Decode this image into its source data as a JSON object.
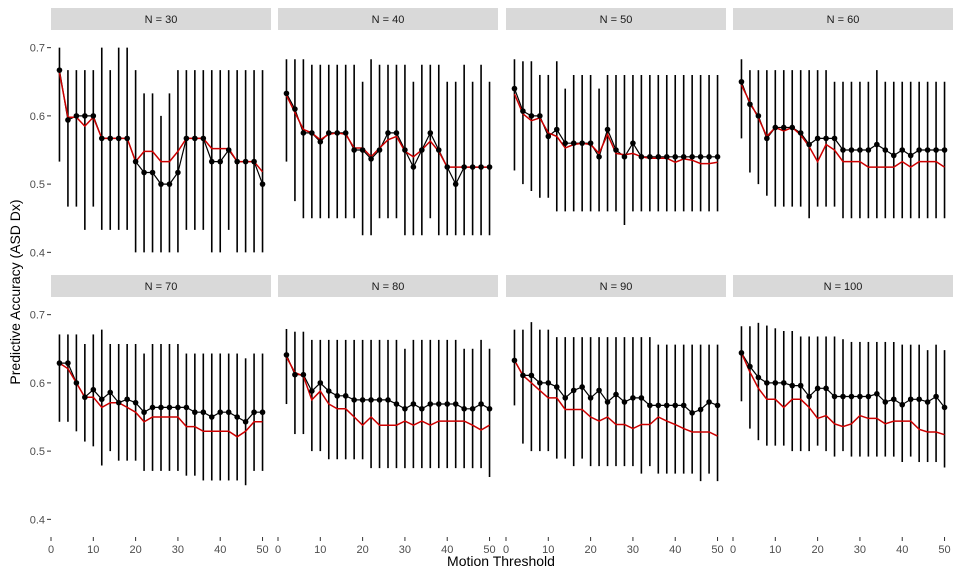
{
  "chart_data": {
    "type": "line",
    "xlabel": "Motion Threshold",
    "ylabel": "Predictive Accuracy (ASD Dx)",
    "xlim": [
      0,
      52
    ],
    "ylim": [
      0.38,
      0.72
    ],
    "x_ticks": [
      0,
      10,
      20,
      30,
      40,
      50
    ],
    "x_tick_labels": [
      "0",
      "10",
      "20",
      "30",
      "40",
      "50"
    ],
    "y_ticks": [
      0.4,
      0.5,
      0.6,
      0.7
    ],
    "y_tick_labels": [
      "0.4",
      "0.5",
      "0.6",
      "0.7"
    ],
    "x": [
      2,
      4,
      6,
      8,
      10,
      12,
      14,
      16,
      18,
      20,
      22,
      24,
      26,
      28,
      30,
      32,
      34,
      36,
      38,
      40,
      42,
      44,
      46,
      48,
      50
    ],
    "colors": {
      "points": "#000000",
      "errorbars": "#000000",
      "red_line": "#cc0000",
      "strip": "#d9d9d9"
    },
    "panels": [
      {
        "label": "N = 30",
        "mean": [
          0.667,
          0.594,
          0.6,
          0.6,
          0.6,
          0.567,
          0.567,
          0.567,
          0.567,
          0.533,
          0.517,
          0.517,
          0.5,
          0.5,
          0.517,
          0.567,
          0.567,
          0.567,
          0.533,
          0.533,
          0.55,
          0.533,
          0.533,
          0.533,
          0.5
        ],
        "lower": [
          0.533,
          0.467,
          0.467,
          0.433,
          0.467,
          0.433,
          0.433,
          0.433,
          0.433,
          0.4,
          0.4,
          0.4,
          0.4,
          0.4,
          0.4,
          0.433,
          0.433,
          0.433,
          0.4,
          0.4,
          0.433,
          0.4,
          0.4,
          0.4,
          0.4
        ],
        "upper": [
          0.7,
          0.667,
          0.667,
          0.667,
          0.667,
          0.7,
          0.667,
          0.7,
          0.7,
          0.667,
          0.633,
          0.633,
          0.6,
          0.633,
          0.667,
          0.667,
          0.667,
          0.667,
          0.667,
          0.667,
          0.667,
          0.667,
          0.667,
          0.667,
          0.667
        ],
        "red": [
          0.663,
          0.598,
          0.598,
          0.585,
          0.598,
          0.567,
          0.567,
          0.567,
          0.567,
          0.533,
          0.548,
          0.548,
          0.533,
          0.533,
          0.548,
          0.567,
          0.567,
          0.567,
          0.552,
          0.552,
          0.552,
          0.533,
          0.533,
          0.533,
          0.518
        ]
      },
      {
        "label": "N = 40",
        "mean": [
          0.633,
          0.61,
          0.575,
          0.575,
          0.562,
          0.575,
          0.575,
          0.575,
          0.55,
          0.55,
          0.537,
          0.55,
          0.575,
          0.575,
          0.55,
          0.525,
          0.55,
          0.575,
          0.55,
          0.525,
          0.5,
          0.525,
          0.525,
          0.525,
          0.525
        ],
        "lower": [
          0.533,
          0.475,
          0.45,
          0.45,
          0.45,
          0.45,
          0.45,
          0.45,
          0.45,
          0.425,
          0.425,
          0.45,
          0.45,
          0.45,
          0.425,
          0.425,
          0.425,
          0.45,
          0.425,
          0.425,
          0.425,
          0.425,
          0.425,
          0.425,
          0.425
        ],
        "upper": [
          0.683,
          0.683,
          0.683,
          0.675,
          0.675,
          0.675,
          0.675,
          0.675,
          0.675,
          0.65,
          0.683,
          0.675,
          0.675,
          0.675,
          0.675,
          0.65,
          0.675,
          0.675,
          0.675,
          0.65,
          0.65,
          0.675,
          0.65,
          0.675,
          0.65
        ],
        "red": [
          0.63,
          0.605,
          0.58,
          0.575,
          0.565,
          0.573,
          0.575,
          0.573,
          0.553,
          0.553,
          0.54,
          0.553,
          0.565,
          0.57,
          0.548,
          0.54,
          0.55,
          0.563,
          0.548,
          0.525,
          0.525,
          0.525,
          0.525,
          0.525,
          0.525
        ]
      },
      {
        "label": "N = 50",
        "mean": [
          0.64,
          0.607,
          0.6,
          0.6,
          0.57,
          0.58,
          0.56,
          0.56,
          0.56,
          0.56,
          0.54,
          0.58,
          0.55,
          0.54,
          0.56,
          0.54,
          0.54,
          0.54,
          0.54,
          0.54,
          0.54,
          0.54,
          0.54,
          0.54,
          0.54
        ],
        "lower": [
          0.52,
          0.5,
          0.49,
          0.48,
          0.48,
          0.46,
          0.46,
          0.46,
          0.46,
          0.46,
          0.46,
          0.46,
          0.46,
          0.44,
          0.46,
          0.46,
          0.46,
          0.46,
          0.46,
          0.46,
          0.46,
          0.46,
          0.46,
          0.46,
          0.46
        ],
        "upper": [
          0.683,
          0.68,
          0.68,
          0.66,
          0.66,
          0.68,
          0.64,
          0.66,
          0.66,
          0.66,
          0.64,
          0.66,
          0.66,
          0.66,
          0.66,
          0.66,
          0.66,
          0.66,
          0.66,
          0.66,
          0.66,
          0.66,
          0.66,
          0.66,
          0.66
        ],
        "red": [
          0.632,
          0.603,
          0.593,
          0.597,
          0.575,
          0.57,
          0.553,
          0.558,
          0.56,
          0.558,
          0.545,
          0.573,
          0.545,
          0.543,
          0.545,
          0.54,
          0.538,
          0.538,
          0.538,
          0.532,
          0.537,
          0.535,
          0.53,
          0.53,
          0.532
        ]
      },
      {
        "label": "N = 60",
        "mean": [
          0.65,
          0.617,
          0.6,
          0.567,
          0.583,
          0.583,
          0.583,
          0.575,
          0.558,
          0.567,
          0.567,
          0.567,
          0.55,
          0.55,
          0.55,
          0.55,
          0.558,
          0.55,
          0.542,
          0.55,
          0.542,
          0.55,
          0.55,
          0.55,
          0.55
        ],
        "lower": [
          0.567,
          0.517,
          0.5,
          0.483,
          0.467,
          0.467,
          0.467,
          0.467,
          0.45,
          0.467,
          0.467,
          0.467,
          0.45,
          0.45,
          0.45,
          0.45,
          0.45,
          0.45,
          0.45,
          0.45,
          0.45,
          0.45,
          0.45,
          0.45,
          0.45
        ],
        "upper": [
          0.683,
          0.667,
          0.667,
          0.667,
          0.667,
          0.667,
          0.667,
          0.667,
          0.667,
          0.667,
          0.667,
          0.65,
          0.65,
          0.65,
          0.65,
          0.65,
          0.667,
          0.65,
          0.65,
          0.65,
          0.65,
          0.65,
          0.65,
          0.65,
          0.65
        ],
        "red": [
          0.645,
          0.62,
          0.597,
          0.57,
          0.583,
          0.578,
          0.583,
          0.572,
          0.555,
          0.533,
          0.558,
          0.55,
          0.533,
          0.533,
          0.533,
          0.525,
          0.525,
          0.525,
          0.525,
          0.533,
          0.525,
          0.533,
          0.533,
          0.533,
          0.525
        ]
      },
      {
        "label": "N = 70",
        "mean": [
          0.629,
          0.629,
          0.6,
          0.579,
          0.59,
          0.576,
          0.586,
          0.571,
          0.576,
          0.571,
          0.557,
          0.564,
          0.564,
          0.564,
          0.564,
          0.564,
          0.557,
          0.557,
          0.55,
          0.557,
          0.557,
          0.55,
          0.543,
          0.557,
          0.557
        ],
        "lower": [
          0.543,
          0.543,
          0.529,
          0.514,
          0.507,
          0.479,
          0.5,
          0.486,
          0.486,
          0.486,
          0.471,
          0.471,
          0.471,
          0.471,
          0.471,
          0.464,
          0.464,
          0.457,
          0.457,
          0.457,
          0.457,
          0.457,
          0.45,
          0.471,
          0.471
        ],
        "upper": [
          0.671,
          0.671,
          0.671,
          0.657,
          0.671,
          0.678,
          0.657,
          0.657,
          0.657,
          0.657,
          0.643,
          0.657,
          0.657,
          0.657,
          0.657,
          0.643,
          0.643,
          0.643,
          0.643,
          0.643,
          0.643,
          0.643,
          0.636,
          0.643,
          0.643
        ],
        "red": [
          0.629,
          0.621,
          0.6,
          0.579,
          0.579,
          0.564,
          0.571,
          0.571,
          0.564,
          0.557,
          0.543,
          0.55,
          0.55,
          0.55,
          0.55,
          0.536,
          0.536,
          0.529,
          0.529,
          0.529,
          0.529,
          0.521,
          0.529,
          0.543,
          0.543
        ]
      },
      {
        "label": "N = 80",
        "mean": [
          0.641,
          0.612,
          0.612,
          0.588,
          0.6,
          0.588,
          0.581,
          0.581,
          0.575,
          0.575,
          0.575,
          0.575,
          0.575,
          0.569,
          0.562,
          0.569,
          0.562,
          0.569,
          0.569,
          0.569,
          0.569,
          0.562,
          0.562,
          0.569,
          0.562
        ],
        "lower": [
          0.569,
          0.525,
          0.525,
          0.5,
          0.5,
          0.488,
          0.488,
          0.488,
          0.488,
          0.488,
          0.475,
          0.475,
          0.475,
          0.475,
          0.475,
          0.475,
          0.475,
          0.475,
          0.475,
          0.475,
          0.475,
          0.475,
          0.475,
          0.475,
          0.462
        ],
        "upper": [
          0.679,
          0.675,
          0.675,
          0.663,
          0.663,
          0.663,
          0.663,
          0.663,
          0.663,
          0.663,
          0.663,
          0.663,
          0.663,
          0.663,
          0.65,
          0.663,
          0.663,
          0.663,
          0.663,
          0.663,
          0.663,
          0.65,
          0.65,
          0.663,
          0.65
        ],
        "red": [
          0.638,
          0.615,
          0.61,
          0.575,
          0.588,
          0.569,
          0.562,
          0.562,
          0.55,
          0.538,
          0.55,
          0.538,
          0.538,
          0.538,
          0.544,
          0.538,
          0.544,
          0.538,
          0.544,
          0.544,
          0.544,
          0.544,
          0.538,
          0.531,
          0.538
        ]
      },
      {
        "label": "N = 90",
        "mean": [
          0.633,
          0.611,
          0.611,
          0.6,
          0.6,
          0.594,
          0.578,
          0.589,
          0.594,
          0.578,
          0.589,
          0.572,
          0.583,
          0.572,
          0.578,
          0.578,
          0.567,
          0.567,
          0.567,
          0.567,
          0.567,
          0.556,
          0.561,
          0.572,
          0.567
        ],
        "lower": [
          0.567,
          0.511,
          0.5,
          0.5,
          0.5,
          0.489,
          0.489,
          0.478,
          0.489,
          0.478,
          0.478,
          0.478,
          0.478,
          0.478,
          0.478,
          0.467,
          0.478,
          0.467,
          0.467,
          0.467,
          0.467,
          0.467,
          0.456,
          0.467,
          0.456
        ],
        "upper": [
          0.678,
          0.678,
          0.689,
          0.678,
          0.678,
          0.667,
          0.667,
          0.667,
          0.667,
          0.667,
          0.667,
          0.667,
          0.667,
          0.667,
          0.667,
          0.667,
          0.667,
          0.656,
          0.656,
          0.656,
          0.656,
          0.656,
          0.656,
          0.656,
          0.656
        ],
        "red": [
          0.633,
          0.611,
          0.6,
          0.589,
          0.578,
          0.578,
          0.561,
          0.561,
          0.561,
          0.55,
          0.544,
          0.55,
          0.539,
          0.539,
          0.533,
          0.539,
          0.539,
          0.55,
          0.544,
          0.539,
          0.533,
          0.528,
          0.528,
          0.528,
          0.522
        ]
      },
      {
        "label": "N = 100",
        "mean": [
          0.644,
          0.624,
          0.608,
          0.6,
          0.6,
          0.6,
          0.596,
          0.596,
          0.58,
          0.592,
          0.592,
          0.58,
          0.58,
          0.58,
          0.58,
          0.58,
          0.584,
          0.572,
          0.576,
          0.568,
          0.576,
          0.576,
          0.572,
          0.58,
          0.564
        ],
        "lower": [
          0.573,
          0.533,
          0.516,
          0.508,
          0.508,
          0.508,
          0.5,
          0.5,
          0.5,
          0.508,
          0.5,
          0.492,
          0.5,
          0.492,
          0.492,
          0.492,
          0.492,
          0.492,
          0.492,
          0.484,
          0.492,
          0.484,
          0.484,
          0.484,
          0.476
        ],
        "upper": [
          0.683,
          0.683,
          0.688,
          0.684,
          0.68,
          0.676,
          0.676,
          0.668,
          0.668,
          0.668,
          0.668,
          0.668,
          0.664,
          0.66,
          0.66,
          0.66,
          0.66,
          0.66,
          0.66,
          0.656,
          0.656,
          0.656,
          0.648,
          0.656,
          0.648
        ],
        "red": [
          0.644,
          0.616,
          0.592,
          0.576,
          0.576,
          0.564,
          0.576,
          0.576,
          0.564,
          0.548,
          0.552,
          0.54,
          0.536,
          0.54,
          0.552,
          0.548,
          0.548,
          0.54,
          0.544,
          0.544,
          0.544,
          0.532,
          0.528,
          0.528,
          0.524
        ]
      }
    ]
  }
}
